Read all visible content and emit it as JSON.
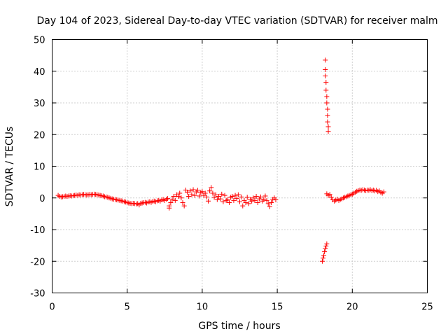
{
  "chart_data": {
    "type": "scatter",
    "title": "Day 104 of 2023, Sidereal Day-to-day VTEC variation (SDTVAR) for receiver malm",
    "xlabel": "GPS time / hours",
    "ylabel": "SDTVAR / TECUs",
    "xlim": [
      0,
      25
    ],
    "ylim": [
      -30,
      50
    ],
    "x_ticks": [
      "0",
      "5",
      "10",
      "15",
      "20",
      "25"
    ],
    "y_ticks": [
      "-30",
      "-20",
      "-10",
      "0",
      "10",
      "20",
      "30",
      "40",
      "50"
    ],
    "grid": true,
    "marker": "+",
    "series": [
      {
        "name": "SDTVAR",
        "color": "#ff0000",
        "points": [
          [
            0.4,
            0.8
          ],
          [
            0.5,
            0.5
          ],
          [
            0.6,
            0.3
          ],
          [
            0.7,
            0.4
          ],
          [
            0.8,
            0.5
          ],
          [
            0.9,
            0.6
          ],
          [
            1.0,
            0.5
          ],
          [
            1.1,
            0.6
          ],
          [
            1.2,
            0.7
          ],
          [
            1.3,
            0.6
          ],
          [
            1.4,
            0.7
          ],
          [
            1.5,
            0.8
          ],
          [
            1.6,
            0.9
          ],
          [
            1.7,
            0.8
          ],
          [
            1.8,
            1.0
          ],
          [
            1.9,
            0.9
          ],
          [
            2.0,
            1.0
          ],
          [
            2.1,
            1.1
          ],
          [
            2.2,
            1.0
          ],
          [
            2.3,
            0.9
          ],
          [
            2.4,
            1.0
          ],
          [
            2.5,
            1.1
          ],
          [
            2.6,
            1.0
          ],
          [
            2.7,
            1.1
          ],
          [
            2.8,
            1.2
          ],
          [
            2.9,
            1.1
          ],
          [
            3.0,
            1.0
          ],
          [
            3.1,
            0.9
          ],
          [
            3.2,
            0.8
          ],
          [
            3.3,
            0.7
          ],
          [
            3.4,
            0.6
          ],
          [
            3.5,
            0.4
          ],
          [
            3.6,
            0.3
          ],
          [
            3.7,
            0.2
          ],
          [
            3.8,
            0.0
          ],
          [
            3.9,
            -0.1
          ],
          [
            4.0,
            -0.3
          ],
          [
            4.1,
            -0.4
          ],
          [
            4.2,
            -0.5
          ],
          [
            4.3,
            -0.6
          ],
          [
            4.4,
            -0.7
          ],
          [
            4.5,
            -0.8
          ],
          [
            4.6,
            -0.9
          ],
          [
            4.7,
            -1.0
          ],
          [
            4.8,
            -1.2
          ],
          [
            4.9,
            -1.3
          ],
          [
            5.0,
            -1.5
          ],
          [
            5.1,
            -1.6
          ],
          [
            5.2,
            -1.7
          ],
          [
            5.3,
            -1.8
          ],
          [
            5.4,
            -1.7
          ],
          [
            5.5,
            -1.8
          ],
          [
            5.6,
            -1.9
          ],
          [
            5.7,
            -1.8
          ],
          [
            5.8,
            -2.2
          ],
          [
            5.9,
            -1.7
          ],
          [
            6.0,
            -1.6
          ],
          [
            6.1,
            -1.5
          ],
          [
            6.2,
            -1.4
          ],
          [
            6.3,
            -1.6
          ],
          [
            6.4,
            -1.3
          ],
          [
            6.5,
            -1.2
          ],
          [
            6.6,
            -1.4
          ],
          [
            6.7,
            -1.1
          ],
          [
            6.8,
            -1.0
          ],
          [
            6.9,
            -1.2
          ],
          [
            7.0,
            -0.9
          ],
          [
            7.1,
            -0.8
          ],
          [
            7.2,
            -1.0
          ],
          [
            7.3,
            -0.6
          ],
          [
            7.4,
            -0.5
          ],
          [
            7.5,
            -0.8
          ],
          [
            7.6,
            -0.4
          ],
          [
            7.7,
            -0.2
          ],
          [
            7.8,
            -2.5
          ],
          [
            7.8,
            -3.2
          ],
          [
            7.9,
            -1.5
          ],
          [
            8.0,
            -0.5
          ],
          [
            8.1,
            0.5
          ],
          [
            8.2,
            -0.8
          ],
          [
            8.3,
            1.0
          ],
          [
            8.4,
            0.5
          ],
          [
            8.5,
            1.5
          ],
          [
            8.6,
            0.0
          ],
          [
            8.7,
            -1.5
          ],
          [
            8.8,
            -2.5
          ],
          [
            8.9,
            2.5
          ],
          [
            9.0,
            1.8
          ],
          [
            9.1,
            0.5
          ],
          [
            9.2,
            2.2
          ],
          [
            9.3,
            1.0
          ],
          [
            9.4,
            2.6
          ],
          [
            9.5,
            0.8
          ],
          [
            9.6,
            1.9
          ],
          [
            9.7,
            2.4
          ],
          [
            9.8,
            0.6
          ],
          [
            9.9,
            1.7
          ],
          [
            10.0,
            2.0
          ],
          [
            10.1,
            0.8
          ],
          [
            10.2,
            1.5
          ],
          [
            10.3,
            0.3
          ],
          [
            10.4,
            -1.0
          ],
          [
            10.5,
            2.2
          ],
          [
            10.6,
            3.3
          ],
          [
            10.7,
            1.5
          ],
          [
            10.8,
            0.2
          ],
          [
            10.9,
            1.0
          ],
          [
            11.0,
            -0.5
          ],
          [
            11.1,
            0.5
          ],
          [
            11.2,
            -0.3
          ],
          [
            11.3,
            1.2
          ],
          [
            11.4,
            -1.2
          ],
          [
            11.5,
            0.8
          ],
          [
            11.6,
            -0.8
          ],
          [
            11.7,
            -0.5
          ],
          [
            11.8,
            -1.5
          ],
          [
            11.9,
            0.2
          ],
          [
            12.0,
            0.5
          ],
          [
            12.1,
            -0.8
          ],
          [
            12.2,
            0.8
          ],
          [
            12.3,
            -0.2
          ],
          [
            12.4,
            1.0
          ],
          [
            12.5,
            -1.2
          ],
          [
            12.6,
            0.3
          ],
          [
            12.7,
            -2.5
          ],
          [
            12.8,
            -0.8
          ],
          [
            12.9,
            -1.5
          ],
          [
            13.0,
            0.2
          ],
          [
            13.1,
            -1.8
          ],
          [
            13.2,
            -0.5
          ],
          [
            13.3,
            -1.0
          ],
          [
            13.4,
            0.0
          ],
          [
            13.5,
            -0.8
          ],
          [
            13.6,
            0.5
          ],
          [
            13.7,
            -1.5
          ],
          [
            13.8,
            -0.3
          ],
          [
            13.9,
            0.3
          ],
          [
            14.0,
            -1.0
          ],
          [
            14.1,
            -0.5
          ],
          [
            14.2,
            0.6
          ],
          [
            14.3,
            -0.8
          ],
          [
            14.4,
            -1.8
          ],
          [
            14.5,
            -2.8
          ],
          [
            14.6,
            -1.5
          ],
          [
            14.7,
            -0.5
          ],
          [
            14.8,
            0.0
          ],
          [
            14.9,
            -0.6
          ],
          [
            18.2,
            43.5
          ],
          [
            18.2,
            40.5
          ],
          [
            18.2,
            38.5
          ],
          [
            18.25,
            36.5
          ],
          [
            18.25,
            34.0
          ],
          [
            18.3,
            32.0
          ],
          [
            18.3,
            30.0
          ],
          [
            18.35,
            28.0
          ],
          [
            18.35,
            26.0
          ],
          [
            18.35,
            24.0
          ],
          [
            18.4,
            22.5
          ],
          [
            18.4,
            21.0
          ],
          [
            18.0,
            -20.0
          ],
          [
            18.05,
            -19.0
          ],
          [
            18.1,
            -18.2
          ],
          [
            18.15,
            -17.0
          ],
          [
            18.2,
            -16.0
          ],
          [
            18.25,
            -15.2
          ],
          [
            18.3,
            -14.5
          ],
          [
            18.3,
            1.3
          ],
          [
            18.4,
            0.8
          ],
          [
            18.5,
            1.1
          ],
          [
            18.6,
            0.2
          ],
          [
            18.7,
            -0.6
          ],
          [
            18.8,
            -1.0
          ],
          [
            18.9,
            -0.7
          ],
          [
            19.0,
            -0.4
          ],
          [
            19.1,
            -0.8
          ],
          [
            19.2,
            -0.5
          ],
          [
            19.3,
            -0.3
          ],
          [
            19.4,
            0.0
          ],
          [
            19.5,
            0.2
          ],
          [
            19.6,
            0.4
          ],
          [
            19.7,
            0.6
          ],
          [
            19.8,
            0.8
          ],
          [
            19.9,
            1.0
          ],
          [
            20.0,
            1.2
          ],
          [
            20.1,
            1.5
          ],
          [
            20.2,
            1.8
          ],
          [
            20.3,
            2.1
          ],
          [
            20.4,
            2.3
          ],
          [
            20.5,
            2.5
          ],
          [
            20.6,
            2.4
          ],
          [
            20.7,
            2.6
          ],
          [
            20.8,
            2.5
          ],
          [
            20.9,
            2.3
          ],
          [
            21.0,
            2.5
          ],
          [
            21.1,
            2.4
          ],
          [
            21.2,
            2.6
          ],
          [
            21.3,
            2.3
          ],
          [
            21.4,
            2.5
          ],
          [
            21.5,
            2.2
          ],
          [
            21.6,
            2.4
          ],
          [
            21.7,
            2.0
          ],
          [
            21.8,
            2.2
          ],
          [
            21.9,
            1.7
          ],
          [
            22.0,
            1.5
          ],
          [
            22.1,
            1.9
          ]
        ]
      }
    ]
  }
}
